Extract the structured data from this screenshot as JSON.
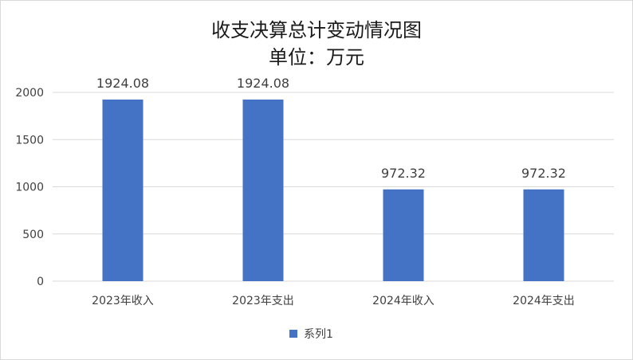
{
  "chart_data": {
    "type": "bar",
    "title": "收支决算总计变动情况图",
    "subtitle": "单位：万元",
    "categories": [
      "2023年收入",
      "2023年支出",
      "2024年收入",
      "2024年支出"
    ],
    "series": [
      {
        "name": "系列1",
        "values": [
          1924.08,
          1924.08,
          972.32,
          972.32
        ],
        "color": "#4472c4"
      }
    ],
    "data_labels": [
      "1924.08",
      "1924.08",
      "972.32",
      "972.32"
    ],
    "ylim": [
      0,
      2000
    ],
    "yticks": [
      0,
      500,
      1000,
      1500,
      2000
    ],
    "grid": true,
    "legend_position": "bottom",
    "colors": {
      "gridline": "#d9d9d9",
      "text": "#404040",
      "title": "#1a1a1a"
    }
  }
}
